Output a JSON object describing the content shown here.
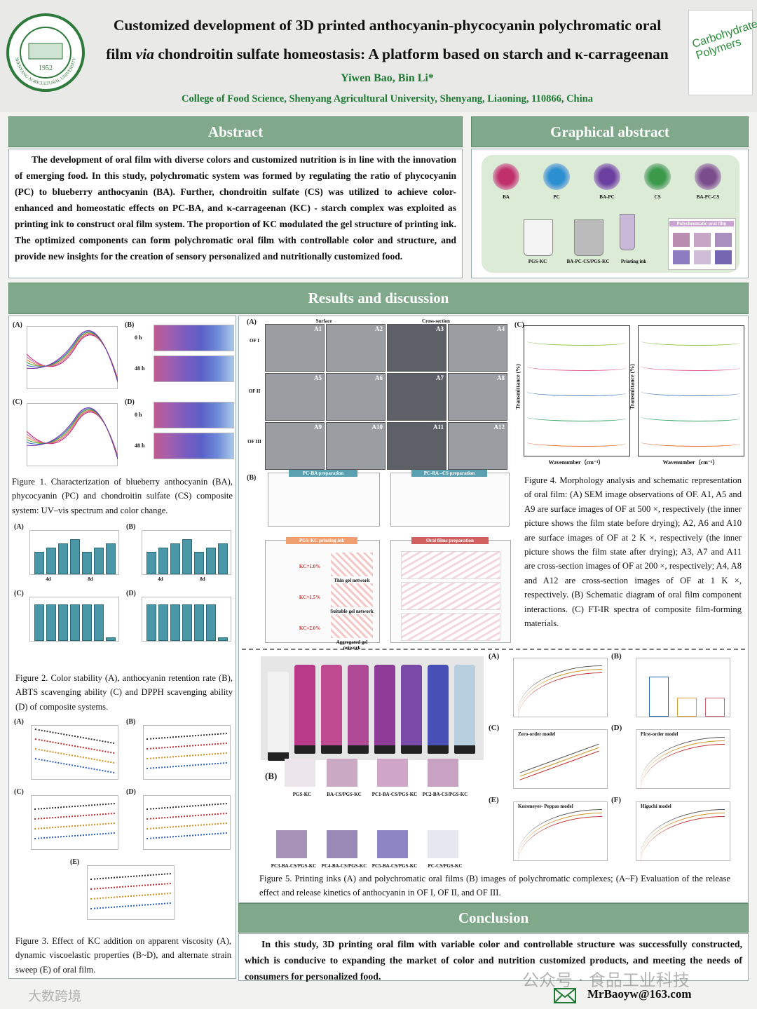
{
  "header": {
    "title_line1": "Customized development of 3D printed anthocyanin-phycocyanin polychromatic oral",
    "title_line2_start": "film",
    "title_line2_italic": "via",
    "title_line2_end": "chondroitin sulfate homeostasis: A platform based on starch and κ-carrageenan",
    "authors": "Yiwen Bao, Bin Li*",
    "affiliation": "College of Food Science, Shenyang Agricultural University,  Shenyang,  Liaoning,  110866,  China",
    "logo_year": "1952",
    "logo_text": "SHENYANG AGRICULTURAL UNIVERSITY",
    "journal": "Carbohydrate Polymers"
  },
  "abstract": {
    "heading": "Abstract",
    "text": "The development of oral film with diverse colors and customized nutrition is in line with the innovation of emerging food. In this study, polychromatic system was formed by regulating the ratio of phycocyanin (PC) to blueberry anthocyanin (BA). Further, chondroitin sulfate (CS) was utilized to achieve color-enhanced and homeostatic effects on PC-BA, and κ-carrageenan (KC) - starch complex was exploited as printing ink to construct oral film system. The proportion of KC modulated the gel structure of printing ink. The optimized components can form polychromatic oral film with controllable color and structure, and provide new insights for the creation of sensory personalized and nutritionally customized food."
  },
  "graphical_abstract": {
    "heading": "Graphical abstract",
    "molecules": [
      "BA",
      "PC",
      "BA-PC",
      "CS",
      "BA-PC-CS"
    ],
    "steps": [
      "PGS-KC",
      "BA-PC-CS/PGS-KC",
      "Printing ink",
      "Polychromatic oral film"
    ]
  },
  "results": {
    "heading": "Results and discussion"
  },
  "figure1": {
    "panels": [
      "(A)",
      "(B)",
      "(C)",
      "(D)"
    ],
    "row_labels": [
      "0 h",
      "48 h",
      "0 h",
      "48 h"
    ],
    "caption": "Figure 1. Characterization of blueberry anthocyanin (BA), phycocyanin (PC) and chondroitin sulfate (CS) composite system: UV–vis spectrum and color change."
  },
  "figure2": {
    "panels": [
      "(A)",
      "(B)",
      "(C)",
      "(D)"
    ],
    "groups": [
      "4d",
      "8d",
      "4d",
      "8d"
    ],
    "caption": "Figure 2. Color stability (A), anthocyanin retention rate (B), ABTS scavenging ability (C) and DPPH scavenging ability (D) of composite systems."
  },
  "figure3": {
    "panels": [
      "(A)",
      "(B)",
      "(C)",
      "(D)",
      "(E)"
    ],
    "caption": "Figure 3. Effect of KC addition on apparent viscosity (A), dynamic viscoelastic properties (B~D), and alternate strain sweep (E) of oral film."
  },
  "figure4": {
    "panels": [
      "(A)",
      "(B)",
      "(C)"
    ],
    "columns": [
      "Surface",
      "Cross-section"
    ],
    "rows": [
      "OF I",
      "OF II",
      "OF III"
    ],
    "sem_labels": [
      "A1",
      "A2",
      "A3",
      "A4",
      "A5",
      "A6",
      "A7",
      "A8",
      "A9",
      "A10",
      "A11",
      "A12"
    ],
    "schemes": [
      "PC-BA preparation",
      "PC-BA –CS preparation",
      "PGS-KC printing ink",
      "Oral films preparation"
    ],
    "kc_levels": [
      "KC=1.0%",
      "KC=1.5%",
      "KC=2.0%"
    ],
    "networks": [
      "Thin gel network",
      "Suitable gel network",
      "Aggregated gel network"
    ],
    "ftir_x_label": "Wavenumber（cm⁻¹）",
    "ftir_y_label": "Transmittance (%)",
    "caption": "Figure 4. Morphology analysis and schematic representation of oral film: (A) SEM image observations of OF. A1, A5 and A9 are surface images of OF at 500 ×, respectively (the inner picture shows the film state before drying); A2, A6 and A10 are surface images of OF at 2 K ×, respectively (the inner picture shows the film state after drying); A3, A7 and A11 are cross-section images of OF at 200 ×, respectively; A4, A8 and A12 are cross-section images of OF at 1 K ×, respectively. (B) Schematic diagram of oral film component interactions. (C) FT-IR spectra of composite film-forming materials."
  },
  "figure5": {
    "panels_left": [
      "(A)",
      "(B)"
    ],
    "panels_right": [
      "(A)",
      "(B)",
      "(C)",
      "(D)",
      "(E)",
      "(F)"
    ],
    "films": [
      "PGS-KC",
      "BA-CS/PGS-KC",
      "PC1-BA-CS/PGS-KC",
      "PC2-BA-CS/PGS-KC",
      "PC3-BA-CS/PGS-KC",
      "PC4-BA-CS/PGS-KC",
      "PC5-BA-CS/PGS-KC",
      "PC-CS/PGS-KC"
    ],
    "models": [
      "Zero-order model",
      "First-order model",
      "Korsmeyer- Peppas model",
      "Higuchi model"
    ],
    "caption": "Figure 5. Printing inks (A) and polychromatic oral films (B) images of polychromatic complexes; (A~F) Evaluation of the release effect and release kinetics of anthocyanin in OF I, OF II, and OF III."
  },
  "conclusion": {
    "heading": "Conclusion",
    "text": "In this study, 3D printing oral film with variable color and controllable structure was successfully constructed, which is conducive to expanding the market of color and nutrition customized products, and meeting the needs of consumers for personalized food."
  },
  "footer": {
    "email": "MrBaoyw@163.com",
    "watermark": "公众号 · 食品工业科技",
    "watermark2": "大数跨境"
  }
}
